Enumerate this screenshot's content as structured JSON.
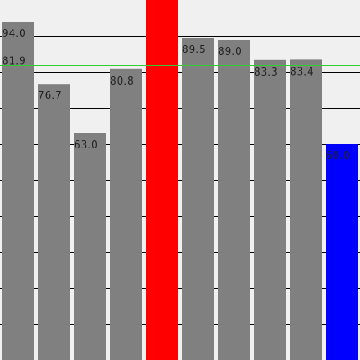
{
  "chart_data": {
    "type": "bar",
    "categories": [
      "",
      "",
      "",
      "",
      "",
      "",
      "",
      "",
      "",
      ""
    ],
    "values": [
      94.0,
      76.7,
      63.0,
      80.8,
      100.0,
      89.5,
      89.0,
      83.3,
      83.4,
      60.0
    ],
    "value_labels": [
      "94.0",
      "76.7",
      "63.0",
      "80.8",
      "",
      "89.5",
      "89.0",
      "83.3",
      "83.4",
      "60.0"
    ],
    "bar_colors": [
      "#808080",
      "#808080",
      "#808080",
      "#808080",
      "#ff0000",
      "#808080",
      "#808080",
      "#808080",
      "#808080",
      "#0000ff"
    ],
    "reference_line": {
      "value": 81.9,
      "label": "81.9",
      "color": "#33cc33"
    },
    "ylim": [
      0,
      100
    ],
    "gridline_values": [
      10,
      20,
      30,
      40,
      50,
      60,
      70,
      80,
      90
    ],
    "grid": true,
    "title": "",
    "xlabel": "",
    "ylabel": "",
    "colors": {
      "background": "#f0f0f0",
      "gridline": "#000000",
      "default_bar": "#808080",
      "highlight_max": "#ff0000",
      "highlight_min": "#0000ff"
    }
  }
}
